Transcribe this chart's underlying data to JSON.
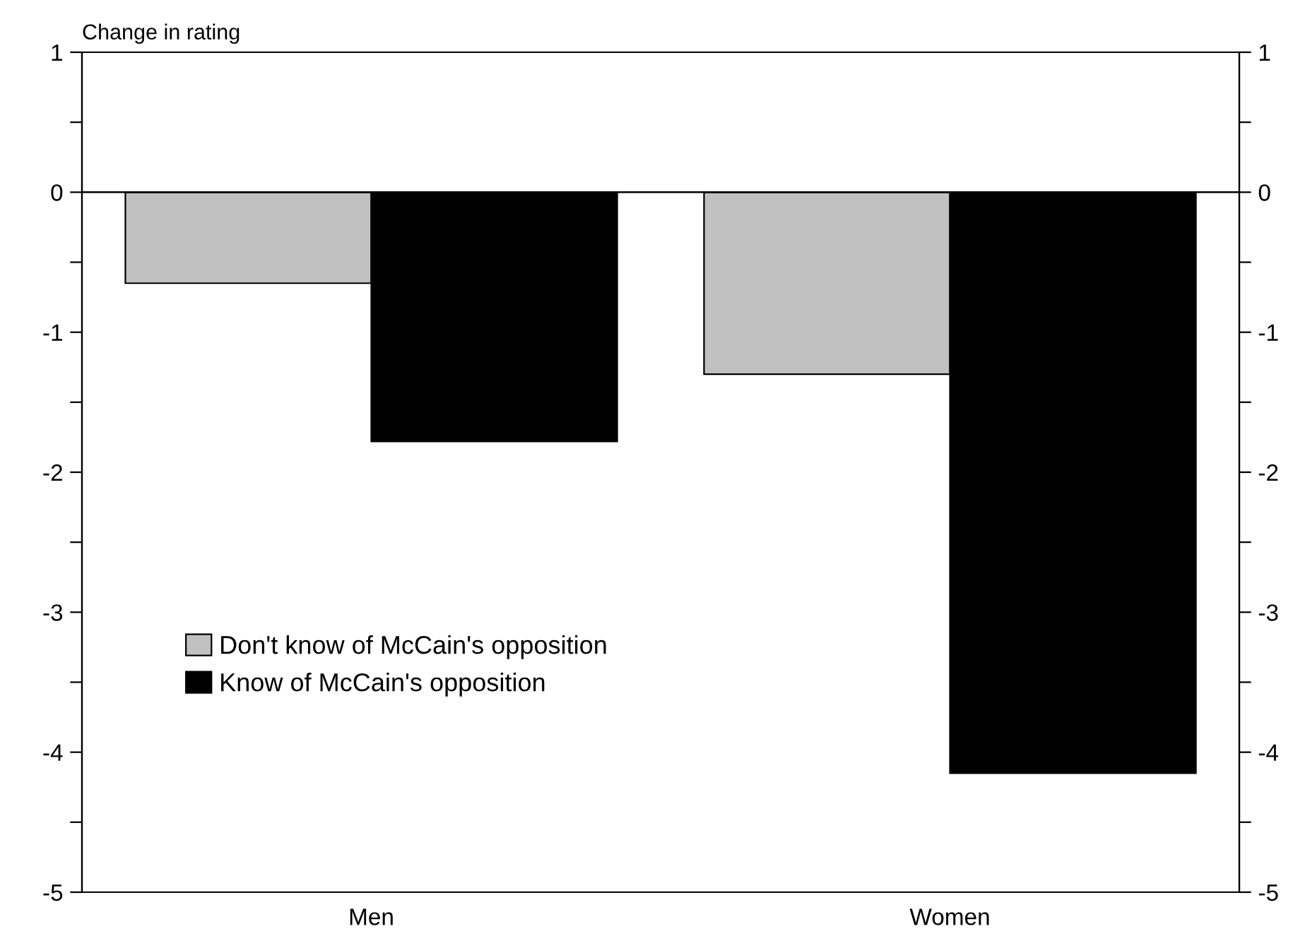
{
  "chart_data": {
    "type": "bar",
    "ylabel": "Change in rating",
    "categories": [
      "Men",
      "Women"
    ],
    "series": [
      {
        "name": "Don't know of McCain's opposition",
        "color": "#c0c0c0",
        "values": [
          -0.65,
          -1.3
        ]
      },
      {
        "name": "Know of McCain's opposition",
        "color": "#000000",
        "values": [
          -1.78,
          -4.15
        ]
      }
    ],
    "ylim": [
      -5,
      1
    ],
    "yticks": [
      -5,
      {
        "value": -4.5,
        "label": null
      },
      -4,
      {
        "value": -3.5,
        "label": null
      },
      -3,
      {
        "value": -2.5,
        "label": null
      },
      -2,
      {
        "value": -1.5,
        "label": null
      },
      -1,
      {
        "value": -0.5,
        "label": null
      },
      0,
      {
        "value": 0.5,
        "label": null
      },
      1
    ],
    "y2lim": [
      -5,
      1
    ],
    "y2ticks": [
      -5,
      {
        "value": -4.5,
        "label": null
      },
      -4,
      {
        "value": -3.5,
        "label": null
      },
      -3,
      {
        "value": -2.5,
        "label": null
      },
      -2,
      {
        "value": -1.5,
        "label": null
      },
      -1,
      {
        "value": -0.5,
        "label": null
      },
      0,
      {
        "value": 0.5,
        "label": null
      },
      1
    ],
    "ref_lines": [
      {
        "axis": "y",
        "value": 0,
        "color": "#000000"
      }
    ],
    "legend": "left",
    "grid": false
  }
}
